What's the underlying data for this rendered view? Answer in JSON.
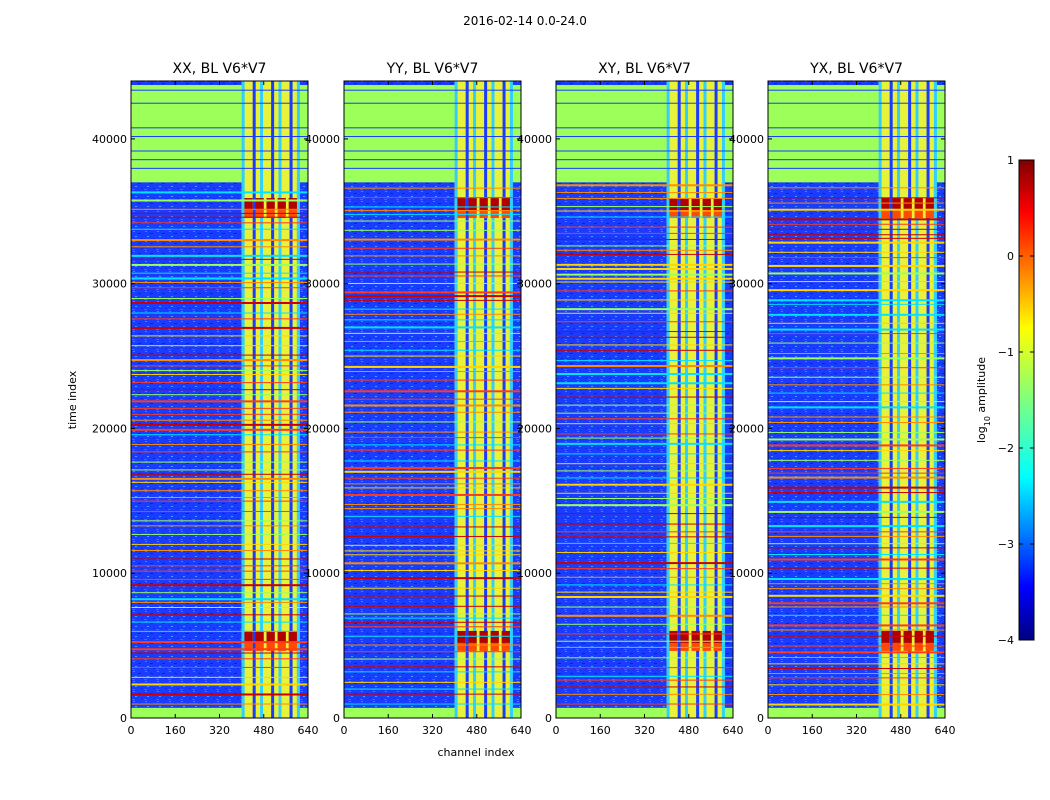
{
  "suptitle": "2016-02-14 0.0-24.0",
  "chart_data": {
    "type": "heatmap",
    "title": "2016-02-14 0.0-24.0",
    "xlabel": "channel index",
    "ylabel": "time index",
    "xlim": [
      0,
      640
    ],
    "ylim": [
      0,
      44000
    ],
    "x_ticks": [
      0,
      160,
      320,
      480,
      640
    ],
    "x_tick_labels": [
      "0",
      "160",
      "320",
      "480",
      "640"
    ],
    "y_ticks": [
      0,
      10000,
      20000,
      30000,
      40000
    ],
    "y_tick_labels": [
      "0",
      "10000",
      "20000",
      "30000",
      "40000"
    ],
    "panels": [
      {
        "title": "XX, BL V6*V7"
      },
      {
        "title": "YY, BL V6*V7"
      },
      {
        "title": "XY, BL V6*V7"
      },
      {
        "title": "YX, BL V6*V7"
      }
    ],
    "colorbar": {
      "label": "log10 amplitude",
      "label_base": "log",
      "label_sub": "10",
      "label_rest": " amplitude",
      "range": [
        -4,
        1
      ],
      "ticks": [
        1,
        0,
        -1,
        -2,
        -3,
        -4
      ],
      "tick_labels": [
        "1",
        "0",
        "−1",
        "−2",
        "−3",
        "−4"
      ],
      "colormap": "jet"
    }
  }
}
